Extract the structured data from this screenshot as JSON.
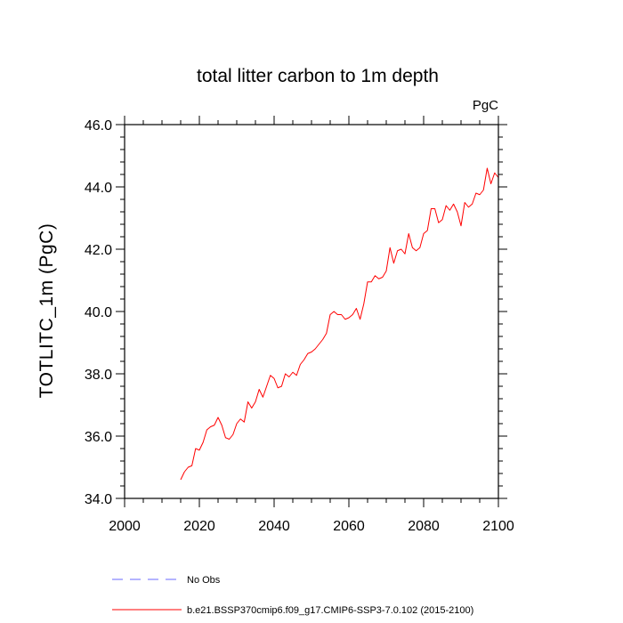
{
  "chart_data": {
    "type": "line",
    "title": "total litter carbon to 1m depth",
    "units": "PgC",
    "xlabel": "",
    "ylabel": "TOTLITC_1m  (PgC)",
    "xlim": [
      2000,
      2100
    ],
    "ylim": [
      34.0,
      46.0
    ],
    "xticks": [
      "2000",
      "2020",
      "2040",
      "2060",
      "2080",
      "2100"
    ],
    "yticks": [
      "34.0",
      "36.0",
      "38.0",
      "40.0",
      "42.0",
      "44.0",
      "46.0"
    ],
    "grid": false,
    "legend": "bottom",
    "legend_entries": [
      {
        "label": "No Obs",
        "color": "#6a6aff",
        "dash": true
      },
      {
        "label": "b.e21.BSSP370cmip6.f09_g17.CMIP6-SSP3-7.0.102 (2015-2100)",
        "color": "#ff0000",
        "dash": false
      }
    ],
    "series": [
      {
        "name": "b.e21.BSSP370cmip6.f09_g17.CMIP6-SSP3-7.0.102 (2015-2100)",
        "color": "#ff0000",
        "x": [
          2015,
          2016,
          2017,
          2018,
          2019,
          2020,
          2021,
          2022,
          2023,
          2024,
          2025,
          2026,
          2027,
          2028,
          2029,
          2030,
          2031,
          2032,
          2033,
          2034,
          2035,
          2036,
          2037,
          2038,
          2039,
          2040,
          2041,
          2042,
          2043,
          2044,
          2045,
          2046,
          2047,
          2048,
          2049,
          2050,
          2051,
          2052,
          2053,
          2054,
          2055,
          2056,
          2057,
          2058,
          2059,
          2060,
          2061,
          2062,
          2063,
          2064,
          2065,
          2066,
          2067,
          2068,
          2069,
          2070,
          2071,
          2072,
          2073,
          2074,
          2075,
          2076,
          2077,
          2078,
          2079,
          2080,
          2081,
          2082,
          2083,
          2084,
          2085,
          2086,
          2087,
          2088,
          2089,
          2090,
          2091,
          2092,
          2093,
          2094,
          2095,
          2096,
          2097,
          2098,
          2099,
          2100
        ],
        "y": [
          34.6,
          34.85,
          35.0,
          35.05,
          35.6,
          35.55,
          35.8,
          36.2,
          36.3,
          36.35,
          36.6,
          36.35,
          35.95,
          35.9,
          36.05,
          36.4,
          36.55,
          36.45,
          37.1,
          36.9,
          37.1,
          37.5,
          37.25,
          37.6,
          37.95,
          37.85,
          37.55,
          37.6,
          38.0,
          37.9,
          38.05,
          37.95,
          38.3,
          38.45,
          38.65,
          38.7,
          38.8,
          38.95,
          39.1,
          39.3,
          39.9,
          40.0,
          39.9,
          39.9,
          39.75,
          39.8,
          39.9,
          40.1,
          39.75,
          40.25,
          40.95,
          40.95,
          41.15,
          41.05,
          41.1,
          41.3,
          42.05,
          41.55,
          41.95,
          42.0,
          41.85,
          42.5,
          42.05,
          41.95,
          42.05,
          42.5,
          42.6,
          43.3,
          43.3,
          42.85,
          42.95,
          43.4,
          43.25,
          43.45,
          43.2,
          42.75,
          43.5,
          43.35,
          43.45,
          43.8,
          43.75,
          43.9,
          44.6,
          44.1,
          44.45,
          44.3
        ]
      }
    ]
  }
}
